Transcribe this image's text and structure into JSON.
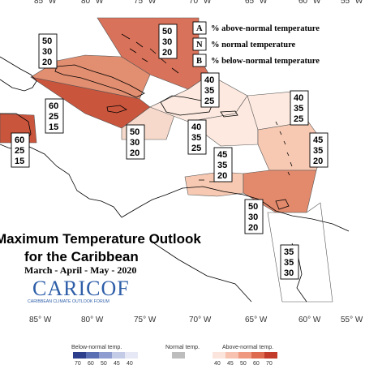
{
  "map": {
    "title_line1": "Maximum Temperature Outlook",
    "title_line2": "for the Caribbean",
    "period": "March - April - May - 2020",
    "logo_text": "CARICOF",
    "logo_subtitle": "CARIBBEAN CLIMATE OUTLOOK FORUM",
    "longitude_labels": [
      "85° W",
      "80° W",
      "75° W",
      "70° W",
      "65° W",
      "60° W",
      "55° W"
    ]
  },
  "legend": {
    "items": [
      {
        "key": "A",
        "text": "% above-normal temperature"
      },
      {
        "key": "N",
        "text": "% normal temperature"
      },
      {
        "key": "B",
        "text": "% below-normal temperature"
      }
    ]
  },
  "regions": [
    {
      "a": "50",
      "n": "30",
      "b": "20",
      "color": "#d9725a"
    },
    {
      "a": "50",
      "n": "30",
      "b": "20",
      "color": "#e28e70"
    },
    {
      "a": "60",
      "n": "25",
      "b": "15",
      "color": "#c9553d"
    },
    {
      "a": "60",
      "n": "25",
      "b": "15",
      "color": "#c9553d"
    },
    {
      "a": "50",
      "n": "30",
      "b": "20",
      "color": "#f6d9cb"
    },
    {
      "a": "40",
      "n": "35",
      "b": "25",
      "color": "#fde9df"
    },
    {
      "a": "40",
      "n": "35",
      "b": "25",
      "color": "#fde9df"
    },
    {
      "a": "40",
      "n": "35",
      "b": "25",
      "color": "#fde9df"
    },
    {
      "a": "45",
      "n": "35",
      "b": "20",
      "color": "#f7c9b2"
    },
    {
      "a": "45",
      "n": "35",
      "b": "20",
      "color": "#f7c9b2"
    },
    {
      "a": "50",
      "n": "30",
      "b": "20",
      "color": "#e38a6c"
    },
    {
      "a": "35",
      "n": "35",
      "b": "30",
      "color": "#ffffff"
    }
  ],
  "colorbar": {
    "below_label": "Below-normal temp.",
    "normal_label": "Normal temp.",
    "above_label": "Above-normal temp.",
    "below_ticks": [
      "70",
      "60",
      "50",
      "45",
      "40"
    ],
    "above_ticks": [
      "40",
      "45",
      "50",
      "60",
      "70"
    ],
    "below_colors": [
      "#2d3f8c",
      "#5a6eb4",
      "#8e9cd0",
      "#c4cbe7",
      "#e6e9f5"
    ],
    "normal_color": "#bdbdbd",
    "above_colors": [
      "#fbe4dc",
      "#f7c2b0",
      "#ef9a80",
      "#de6b50",
      "#c23b2b"
    ]
  }
}
